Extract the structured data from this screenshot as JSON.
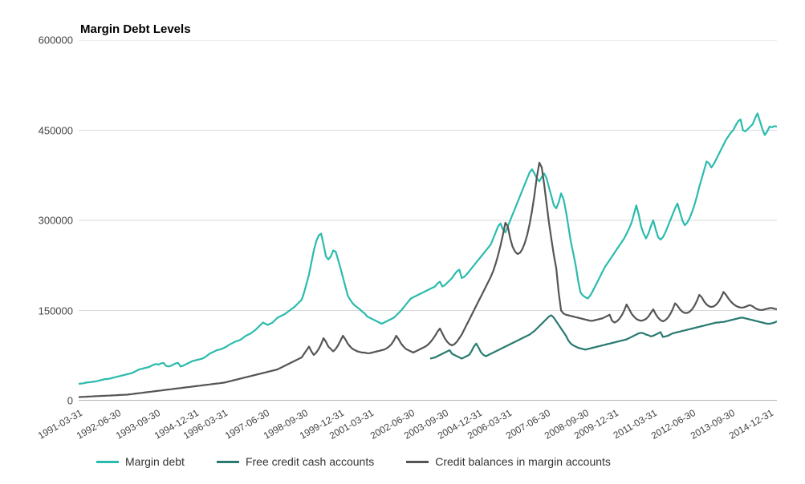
{
  "chart": {
    "type": "line",
    "title": "Margin Debt Levels",
    "title_fontsize": 15,
    "title_fontweight": "bold",
    "background_color": "#ffffff",
    "grid_color": "#d9d9d9",
    "axis_color": "#888888",
    "text_color": "#444444",
    "label_fontsize": 13,
    "xlabel_fontsize": 12,
    "line_width": 2.2,
    "ylim": [
      0,
      600000
    ],
    "ytick_step": 150000,
    "yticks": [
      0,
      150000,
      300000,
      450000,
      600000
    ],
    "xticks": [
      0,
      16,
      32,
      48,
      60,
      77,
      93,
      108,
      120,
      137,
      151,
      165,
      177,
      193,
      209,
      221,
      237,
      253,
      269,
      285
    ],
    "xtick_labels": [
      "1991-03-31",
      "1992-06-30",
      "1993-09-30",
      "1994-12-31",
      "1996-03-31",
      "1997-06-30",
      "1998-09-30",
      "1999-12-31",
      "2001-03-31",
      "2002-06-30",
      "2003-09-30",
      "2004-12-31",
      "2006-03-31",
      "2007-06-30",
      "2008-09-30",
      "2009-12-31",
      "2011-03-31",
      "2012-06-30",
      "2013-09-30",
      "2014-12-31"
    ],
    "n_points": 289,
    "series": [
      {
        "name": "Margin debt",
        "color": "#2bbbad",
        "start_index": 0,
        "values": [
          28000,
          28500,
          29000,
          30000,
          30500,
          31000,
          31500,
          32000,
          33000,
          34000,
          35000,
          36000,
          36000,
          37000,
          38000,
          39000,
          40000,
          41000,
          42000,
          43000,
          44000,
          45000,
          46000,
          48000,
          50000,
          52000,
          53000,
          54000,
          55000,
          56000,
          58000,
          60000,
          61000,
          60000,
          62000,
          63000,
          58000,
          57000,
          58000,
          60000,
          62000,
          63000,
          57000,
          58000,
          60000,
          62000,
          64000,
          66000,
          67000,
          68000,
          69000,
          70000,
          72000,
          75000,
          78000,
          80000,
          82000,
          84000,
          85000,
          86000,
          88000,
          90000,
          93000,
          95000,
          97000,
          99000,
          100000,
          102000,
          105000,
          108000,
          110000,
          112000,
          115000,
          118000,
          122000,
          126000,
          130000,
          128000,
          126000,
          128000,
          130000,
          134000,
          138000,
          140000,
          142000,
          144000,
          147000,
          150000,
          153000,
          156000,
          160000,
          164000,
          168000,
          180000,
          195000,
          210000,
          230000,
          250000,
          265000,
          275000,
          278000,
          260000,
          240000,
          235000,
          240000,
          250000,
          248000,
          235000,
          220000,
          205000,
          190000,
          175000,
          168000,
          162000,
          158000,
          155000,
          152000,
          148000,
          145000,
          140000,
          138000,
          136000,
          134000,
          132000,
          130000,
          128000,
          130000,
          132000,
          134000,
          136000,
          138000,
          142000,
          146000,
          150000,
          155000,
          160000,
          165000,
          170000,
          172000,
          174000,
          176000,
          178000,
          180000,
          182000,
          184000,
          186000,
          188000,
          190000,
          195000,
          198000,
          190000,
          192000,
          196000,
          200000,
          204000,
          210000,
          215000,
          218000,
          204000,
          206000,
          210000,
          215000,
          220000,
          225000,
          230000,
          235000,
          240000,
          245000,
          250000,
          255000,
          260000,
          270000,
          280000,
          290000,
          295000,
          285000,
          280000,
          290000,
          300000,
          310000,
          320000,
          330000,
          340000,
          350000,
          360000,
          370000,
          380000,
          385000,
          378000,
          370000,
          365000,
          372000,
          378000,
          370000,
          355000,
          340000,
          325000,
          320000,
          330000,
          345000,
          335000,
          315000,
          290000,
          265000,
          245000,
          225000,
          200000,
          180000,
          175000,
          172000,
          170000,
          175000,
          182000,
          190000,
          198000,
          206000,
          214000,
          222000,
          228000,
          234000,
          240000,
          246000,
          252000,
          258000,
          264000,
          270000,
          278000,
          286000,
          296000,
          310000,
          325000,
          310000,
          290000,
          278000,
          270000,
          278000,
          290000,
          300000,
          285000,
          272000,
          268000,
          272000,
          280000,
          290000,
          300000,
          310000,
          320000,
          328000,
          314000,
          300000,
          292000,
          296000,
          304000,
          314000,
          326000,
          340000,
          356000,
          370000,
          384000,
          398000,
          395000,
          388000,
          394000,
          402000,
          410000,
          418000,
          426000,
          434000,
          440000,
          446000,
          450000,
          458000,
          465000,
          468000,
          450000,
          448000,
          452000,
          456000,
          460000,
          470000,
          478000,
          465000,
          452000,
          442000,
          448000,
          456000,
          455000,
          457000,
          456000
        ]
      },
      {
        "name": "Free credit cash accounts",
        "color": "#2a7a72",
        "start_index": 145,
        "values": [
          70000,
          71000,
          72000,
          74000,
          76000,
          78000,
          80000,
          82000,
          84000,
          78000,
          76000,
          74000,
          72000,
          70000,
          72000,
          74000,
          76000,
          82000,
          90000,
          95000,
          88000,
          80000,
          76000,
          74000,
          76000,
          78000,
          80000,
          82000,
          84000,
          86000,
          88000,
          90000,
          92000,
          94000,
          96000,
          98000,
          100000,
          102000,
          104000,
          106000,
          108000,
          110000,
          113000,
          116000,
          120000,
          124000,
          128000,
          132000,
          136000,
          140000,
          142000,
          138000,
          132000,
          126000,
          120000,
          114000,
          108000,
          100000,
          95000,
          92000,
          90000,
          88000,
          87000,
          86000,
          85000,
          86000,
          87000,
          88000,
          89000,
          90000,
          91000,
          92000,
          93000,
          94000,
          95000,
          96000,
          97000,
          98000,
          99000,
          100000,
          101000,
          102000,
          104000,
          106000,
          108000,
          110000,
          112000,
          113000,
          112000,
          110000,
          109000,
          107000,
          108000,
          110000,
          112000,
          114000,
          106000,
          107000,
          108000,
          110000,
          112000,
          113000,
          114000,
          115000,
          116000,
          117000,
          118000,
          119000,
          120000,
          121000,
          122000,
          123000,
          124000,
          125000,
          126000,
          127000,
          128000,
          129000,
          130000,
          130000,
          131000,
          131000,
          132000,
          133000,
          134000,
          135000,
          136000,
          137000,
          138000,
          138000,
          137000,
          136000,
          135000,
          134000,
          133000,
          132000,
          131000,
          130000,
          129000,
          128000,
          128000,
          129000,
          130000,
          132000
        ]
      },
      {
        "name": "Credit balances in margin accounts",
        "color": "#555555",
        "start_index": 0,
        "values": [
          6000,
          6200,
          6400,
          6600,
          6800,
          7000,
          7200,
          7400,
          7600,
          7800,
          8000,
          8200,
          8400,
          8600,
          8800,
          9000,
          9200,
          9400,
          9600,
          9800,
          10000,
          10500,
          11000,
          11500,
          12000,
          12500,
          13000,
          13500,
          14000,
          14500,
          15000,
          15500,
          16000,
          16500,
          17000,
          17500,
          18000,
          18500,
          19000,
          19500,
          20000,
          20500,
          21000,
          21500,
          22000,
          22500,
          23000,
          23500,
          24000,
          24500,
          25000,
          25500,
          26000,
          26500,
          27000,
          27500,
          28000,
          28500,
          29000,
          29500,
          30000,
          31000,
          32000,
          33000,
          34000,
          35000,
          36000,
          37000,
          38000,
          39000,
          40000,
          41000,
          42000,
          43000,
          44000,
          45000,
          46000,
          47000,
          48000,
          49000,
          50000,
          51000,
          52000,
          54000,
          56000,
          58000,
          60000,
          62000,
          64000,
          66000,
          68000,
          70000,
          72000,
          78000,
          84000,
          90000,
          82000,
          76000,
          80000,
          86000,
          94000,
          104000,
          98000,
          90000,
          86000,
          82000,
          86000,
          92000,
          100000,
          108000,
          102000,
          95000,
          90000,
          86000,
          84000,
          82000,
          81000,
          80000,
          80000,
          79000,
          79000,
          80000,
          81000,
          82000,
          83000,
          84000,
          85000,
          87000,
          90000,
          94000,
          100000,
          108000,
          102000,
          95000,
          90000,
          86000,
          84000,
          82000,
          80000,
          82000,
          84000,
          86000,
          88000,
          90000,
          93000,
          97000,
          102000,
          108000,
          115000,
          120000,
          112000,
          104000,
          98000,
          94000,
          92000,
          94000,
          98000,
          104000,
          110000,
          118000,
          126000,
          134000,
          142000,
          150000,
          158000,
          166000,
          174000,
          182000,
          190000,
          198000,
          206000,
          216000,
          228000,
          242000,
          258000,
          276000,
          296000,
          290000,
          270000,
          256000,
          248000,
          244000,
          246000,
          252000,
          262000,
          276000,
          294000,
          316000,
          342000,
          372000,
          396000,
          388000,
          360000,
          328000,
          296000,
          268000,
          242000,
          220000,
          180000,
          150000,
          145000,
          143000,
          142000,
          141000,
          140000,
          139000,
          138000,
          137000,
          136000,
          135000,
          134000,
          133000,
          133000,
          134000,
          135000,
          136000,
          137000,
          139000,
          141000,
          143000,
          133000,
          130000,
          132000,
          136000,
          142000,
          150000,
          160000,
          153000,
          145000,
          140000,
          136000,
          134000,
          133000,
          134000,
          136000,
          140000,
          146000,
          152000,
          144000,
          138000,
          134000,
          132000,
          134000,
          138000,
          144000,
          152000,
          162000,
          158000,
          152000,
          148000,
          146000,
          146000,
          148000,
          152000,
          158000,
          166000,
          176000,
          172000,
          165000,
          160000,
          157000,
          156000,
          157000,
          160000,
          165000,
          172000,
          181000,
          176000,
          170000,
          165000,
          161000,
          158000,
          156000,
          155000,
          155000,
          156000,
          158000,
          159000,
          157000,
          154000,
          152000,
          151000,
          151000,
          152000,
          153000,
          154000,
          154000,
          153000,
          152000
        ]
      }
    ],
    "legend_labels": [
      "Margin debt",
      "Free credit cash accounts",
      "Credit balances in margin accounts"
    ]
  }
}
